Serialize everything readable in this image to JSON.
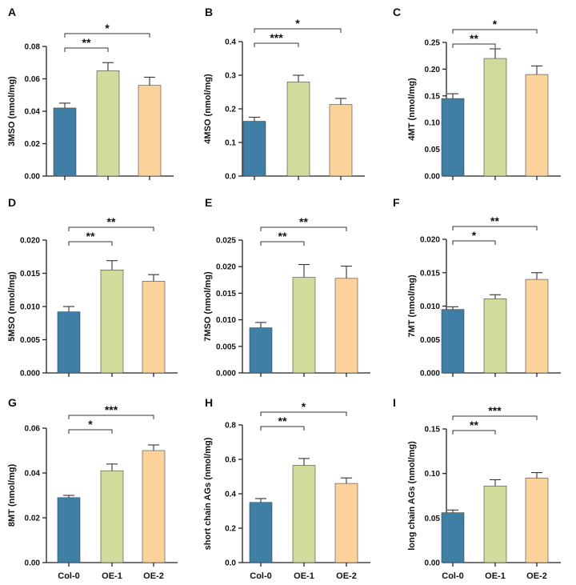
{
  "figure": {
    "categories": [
      "Col-0",
      "OE-1",
      "OE-2"
    ],
    "colors": [
      "#3f7fa6",
      "#cfdc9c",
      "#fcd29b"
    ]
  },
  "chart_data": [
    {
      "type": "bar",
      "panel": "A",
      "ylabel": "3MSO (nmol/mg)",
      "categories": [
        "Col-0",
        "OE-1",
        "OE-2"
      ],
      "values": [
        0.042,
        0.065,
        0.056
      ],
      "errors": [
        0.003,
        0.005,
        0.005
      ],
      "ylim": [
        0,
        0.08
      ],
      "yticks": [
        0,
        0.02,
        0.04,
        0.06,
        0.08
      ],
      "ytick_labels": [
        "0.00",
        "0.02",
        "0.04",
        "0.06",
        "0.08"
      ],
      "show_xlabels": false,
      "significance": [
        {
          "from": 0,
          "to": 1,
          "label": "**"
        },
        {
          "from": 0,
          "to": 2,
          "label": "*"
        }
      ]
    },
    {
      "type": "bar",
      "panel": "B",
      "ylabel": "4MSO (nmol/mg)",
      "categories": [
        "Col-0",
        "OE-1",
        "OE-2"
      ],
      "values": [
        0.163,
        0.28,
        0.213
      ],
      "errors": [
        0.012,
        0.02,
        0.018
      ],
      "ylim": [
        0,
        0.4
      ],
      "yticks": [
        0,
        0.1,
        0.2,
        0.3,
        0.4
      ],
      "ytick_labels": [
        "0.0",
        "0.1",
        "0.2",
        "0.3",
        "0.4"
      ],
      "show_xlabels": false,
      "significance": [
        {
          "from": 0,
          "to": 1,
          "label": "***"
        },
        {
          "from": 0,
          "to": 2,
          "label": "*"
        }
      ]
    },
    {
      "type": "bar",
      "panel": "C",
      "ylabel": "4MT (nmol/mg)",
      "categories": [
        "Col-0",
        "OE-1",
        "OE-2"
      ],
      "values": [
        0.145,
        0.22,
        0.19
      ],
      "errors": [
        0.009,
        0.018,
        0.016
      ],
      "ylim": [
        0,
        0.25
      ],
      "yticks": [
        0,
        0.05,
        0.1,
        0.15,
        0.2,
        0.25
      ],
      "ytick_labels": [
        "0.00",
        "0.05",
        "0.10",
        "0.15",
        "0.20",
        "0.25"
      ],
      "show_xlabels": false,
      "significance": [
        {
          "from": 0,
          "to": 1,
          "label": "**"
        },
        {
          "from": 0,
          "to": 2,
          "label": "*"
        }
      ]
    },
    {
      "type": "bar",
      "panel": "D",
      "ylabel": "5MSO (nmol/mg)",
      "categories": [
        "Col-0",
        "OE-1",
        "OE-2"
      ],
      "values": [
        0.0092,
        0.0155,
        0.0138
      ],
      "errors": [
        0.0008,
        0.0014,
        0.001
      ],
      "ylim": [
        0,
        0.02
      ],
      "yticks": [
        0,
        0.005,
        0.01,
        0.015,
        0.02
      ],
      "ytick_labels": [
        "0.000",
        "0.005",
        "0.010",
        "0.015",
        "0.020"
      ],
      "show_xlabels": false,
      "significance": [
        {
          "from": 0,
          "to": 1,
          "label": "**"
        },
        {
          "from": 0,
          "to": 2,
          "label": "**"
        }
      ]
    },
    {
      "type": "bar",
      "panel": "E",
      "ylabel": "7MSO (nmol/mg)",
      "categories": [
        "Col-0",
        "OE-1",
        "OE-2"
      ],
      "values": [
        0.0085,
        0.018,
        0.0178
      ],
      "errors": [
        0.001,
        0.0024,
        0.0023
      ],
      "ylim": [
        0,
        0.025
      ],
      "yticks": [
        0,
        0.005,
        0.01,
        0.015,
        0.02,
        0.025
      ],
      "ytick_labels": [
        "0.000",
        "0.005",
        "0.010",
        "0.015",
        "0.020",
        "0.025"
      ],
      "show_xlabels": false,
      "significance": [
        {
          "from": 0,
          "to": 1,
          "label": "**"
        },
        {
          "from": 0,
          "to": 2,
          "label": "**"
        }
      ]
    },
    {
      "type": "bar",
      "panel": "F",
      "ylabel": "7MT (nmol/mg)",
      "categories": [
        "Col-0",
        "OE-1",
        "OE-2"
      ],
      "values": [
        0.0095,
        0.0111,
        0.014
      ],
      "errors": [
        0.0004,
        0.0006,
        0.001
      ],
      "ylim": [
        0,
        0.02
      ],
      "yticks": [
        0,
        0.005,
        0.01,
        0.015,
        0.02
      ],
      "ytick_labels": [
        "0.000",
        "0.005",
        "0.010",
        "0.015",
        "0.020"
      ],
      "show_xlabels": false,
      "significance": [
        {
          "from": 0,
          "to": 1,
          "label": "*"
        },
        {
          "from": 0,
          "to": 2,
          "label": "**"
        }
      ]
    },
    {
      "type": "bar",
      "panel": "G",
      "ylabel": "8MT (nmol/mg)",
      "categories": [
        "Col-0",
        "OE-1",
        "OE-2"
      ],
      "values": [
        0.029,
        0.041,
        0.05
      ],
      "errors": [
        0.001,
        0.003,
        0.0025
      ],
      "ylim": [
        0,
        0.06
      ],
      "yticks": [
        0,
        0.02,
        0.04,
        0.06
      ],
      "ytick_labels": [
        "0.00",
        "0.02",
        "0.04",
        "0.06"
      ],
      "show_xlabels": true,
      "significance": [
        {
          "from": 0,
          "to": 1,
          "label": "*"
        },
        {
          "from": 0,
          "to": 2,
          "label": "***"
        }
      ]
    },
    {
      "type": "bar",
      "panel": "H",
      "ylabel": "short chain AGs (nmol/mg)",
      "categories": [
        "Col-0",
        "OE-1",
        "OE-2"
      ],
      "values": [
        0.35,
        0.565,
        0.46
      ],
      "errors": [
        0.022,
        0.04,
        0.032
      ],
      "ylim": [
        0,
        0.8
      ],
      "yticks": [
        0,
        0.2,
        0.4,
        0.6,
        0.8
      ],
      "ytick_labels": [
        "0.0",
        "0.2",
        "0.4",
        "0.6",
        "0.8"
      ],
      "show_xlabels": true,
      "significance": [
        {
          "from": 0,
          "to": 1,
          "label": "**"
        },
        {
          "from": 0,
          "to": 2,
          "label": "*"
        }
      ]
    },
    {
      "type": "bar",
      "panel": "I",
      "ylabel": "long chain AGs (nmol/mg)",
      "categories": [
        "Col-0",
        "OE-1",
        "OE-2"
      ],
      "values": [
        0.056,
        0.086,
        0.095
      ],
      "errors": [
        0.003,
        0.007,
        0.006
      ],
      "ylim": [
        0,
        0.15
      ],
      "yticks": [
        0,
        0.05,
        0.1,
        0.15
      ],
      "ytick_labels": [
        "0.00",
        "0.05",
        "0.10",
        "0.15"
      ],
      "show_xlabels": true,
      "significance": [
        {
          "from": 0,
          "to": 1,
          "label": "**"
        },
        {
          "from": 0,
          "to": 2,
          "label": "***"
        }
      ]
    }
  ]
}
